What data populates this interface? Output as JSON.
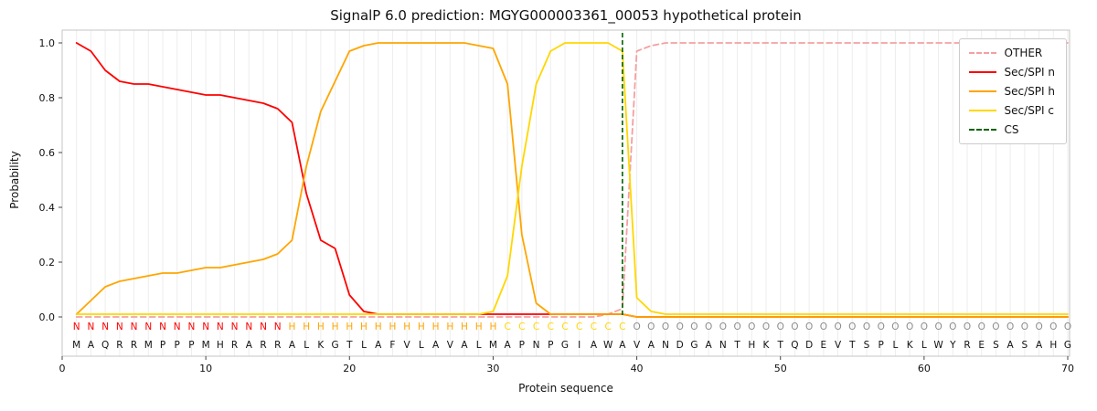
{
  "title": "SignalP 6.0 prediction: MGYG000003361_00053 hypothetical protein",
  "chart_data": {
    "type": "line",
    "title": "SignalP 6.0 prediction: MGYG000003361_00053 hypothetical protein",
    "xlabel": "Protein sequence",
    "ylabel": "Probability",
    "xlim": [
      0,
      70
    ],
    "ylim": [
      0,
      1.0
    ],
    "x_ticks": [
      0,
      10,
      20,
      30,
      40,
      50,
      60,
      70
    ],
    "y_ticks": [
      0,
      0.2,
      0.4,
      0.6,
      0.8,
      1.0
    ],
    "grid": "vertical light gridline at every residue position",
    "legend_position": "upper right",
    "x_start": 1,
    "series": [
      {
        "name": "OTHER",
        "color": "#f4a0a0",
        "dash": true,
        "values": [
          0,
          0,
          0,
          0,
          0,
          0,
          0,
          0,
          0,
          0,
          0,
          0,
          0,
          0,
          0,
          0,
          0,
          0,
          0,
          0,
          0,
          0,
          0,
          0,
          0,
          0,
          0,
          0,
          0,
          0,
          0,
          0,
          0,
          0,
          0,
          0,
          0,
          0.01,
          0.03,
          0.97,
          0.99,
          1,
          1,
          1,
          1,
          1,
          1,
          1,
          1,
          1,
          1,
          1,
          1,
          1,
          1,
          1,
          1,
          1,
          1,
          1,
          1,
          1,
          1,
          1,
          1,
          1,
          1,
          1,
          1,
          1
        ]
      },
      {
        "name": "Sec/SPI n",
        "color": "#ff0000",
        "dash": false,
        "values": [
          1,
          0.97,
          0.9,
          0.86,
          0.85,
          0.85,
          0.84,
          0.83,
          0.82,
          0.81,
          0.81,
          0.8,
          0.79,
          0.78,
          0.76,
          0.71,
          0.45,
          0.28,
          0.25,
          0.08,
          0.02,
          0.01,
          0.01,
          0.01,
          0.01,
          0.01,
          0.01,
          0.01,
          0.01,
          0.01,
          0.01,
          0.01,
          0.01,
          0.01,
          0.01,
          0.01,
          0.01,
          0.01,
          0.01,
          0,
          0,
          0,
          0,
          0,
          0,
          0,
          0,
          0,
          0,
          0,
          0,
          0,
          0,
          0,
          0,
          0,
          0,
          0,
          0,
          0,
          0,
          0,
          0,
          0,
          0,
          0,
          0,
          0,
          0,
          0
        ]
      },
      {
        "name": "Sec/SPI h",
        "color": "#ffa500",
        "dash": false,
        "values": [
          0.01,
          0.06,
          0.11,
          0.13,
          0.14,
          0.15,
          0.16,
          0.16,
          0.17,
          0.18,
          0.18,
          0.19,
          0.2,
          0.21,
          0.23,
          0.28,
          0.55,
          0.75,
          0.86,
          0.97,
          0.99,
          1,
          1,
          1,
          1,
          1,
          1,
          1,
          0.99,
          0.98,
          0.85,
          0.3,
          0.05,
          0.01,
          0.01,
          0.01,
          0.01,
          0.01,
          0.01,
          0,
          0,
          0,
          0,
          0,
          0,
          0,
          0,
          0,
          0,
          0,
          0,
          0,
          0,
          0,
          0,
          0,
          0,
          0,
          0,
          0,
          0,
          0,
          0,
          0,
          0,
          0,
          0,
          0,
          0,
          0
        ]
      },
      {
        "name": "Sec/SPI c",
        "color": "#ffd700",
        "dash": false,
        "values": [
          0.01,
          0.01,
          0.01,
          0.01,
          0.01,
          0.01,
          0.01,
          0.01,
          0.01,
          0.01,
          0.01,
          0.01,
          0.01,
          0.01,
          0.01,
          0.01,
          0.01,
          0.01,
          0.01,
          0.01,
          0.01,
          0.01,
          0.01,
          0.01,
          0.01,
          0.01,
          0.01,
          0.01,
          0.01,
          0.02,
          0.15,
          0.55,
          0.85,
          0.97,
          1,
          1,
          1,
          1,
          0.97,
          0.07,
          0.02,
          0.01,
          0.01,
          0.01,
          0.01,
          0.01,
          0.01,
          0.01,
          0.01,
          0.01,
          0.01,
          0.01,
          0.01,
          0.01,
          0.01,
          0.01,
          0.01,
          0.01,
          0.01,
          0.01,
          0.01,
          0.01,
          0.01,
          0.01,
          0.01,
          0.01,
          0.01,
          0.01,
          0.01,
          0.01
        ]
      }
    ],
    "cs_line": {
      "name": "CS",
      "x": 39,
      "color": "#006400",
      "dash": true
    },
    "sequence": "MAQRRMPPPMHRARRALKGTLAFVLAVALMAPNPGIAWAVANDGANTHKTQDEVTSPLKLWYRESASAHG",
    "region_labels": "NNNNNNNNNNNNNNNHHHHHHHHHHHHHHHCCCCCCCCCOOOOOOOOOOOOOOOOOOOOOOOOOOOOOOO",
    "region_colors": {
      "N": "#ff0000",
      "H": "#ffa500",
      "C": "#ffd700",
      "O": "#8c8c8c"
    },
    "sequence_color": "#111111"
  }
}
